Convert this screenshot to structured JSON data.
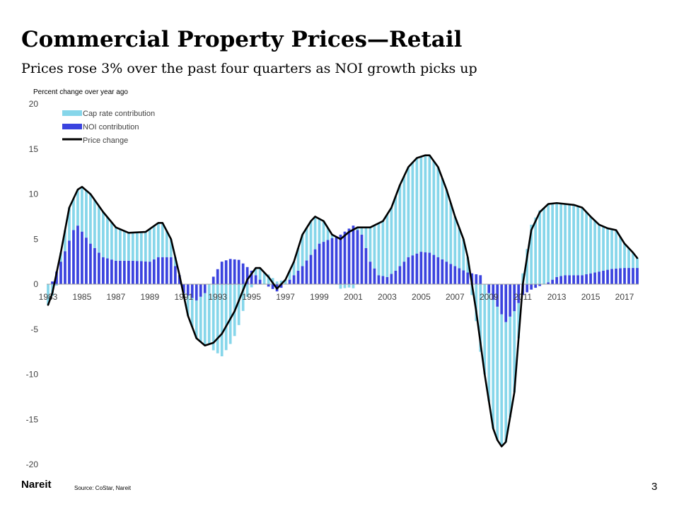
{
  "slide": {
    "title": "Commercial Property Prices—Retail",
    "subtitle": "Prices rose 3% over the past four quarters as NOI growth picks up",
    "logo": "Nareit",
    "source": "Source: CoStar, Nareit",
    "page_number": "3"
  },
  "colors": {
    "cap_rate": "#86d6ea",
    "noi": "#3a43df",
    "price": "#000000"
  },
  "chart_data": {
    "type": "bar",
    "title": "",
    "ylabel": "Percent change over year ago",
    "ylim": [
      -20,
      20
    ],
    "yticks": [
      20,
      15,
      10,
      5,
      0,
      -5,
      -10,
      -15,
      -20
    ],
    "x_range": [
      1983.0,
      2017.75
    ],
    "x_ticks": [
      "1983",
      "1985",
      "1987",
      "1989",
      "1991",
      "1993",
      "1995",
      "1997",
      "1999",
      "2001",
      "2003",
      "2005",
      "2007",
      "2009",
      "2011",
      "2013",
      "2015",
      "2017"
    ],
    "grid": false,
    "legend_position": "top-left",
    "series": [
      {
        "name": "Cap rate contribution",
        "kind": "stacked-bar"
      },
      {
        "name": "NOI contribution",
        "kind": "stacked-bar"
      },
      {
        "name": "Price change",
        "kind": "line"
      }
    ],
    "noi_keypoints": [
      [
        1983.0,
        0.0
      ],
      [
        1983.25,
        0.3
      ],
      [
        1983.75,
        2.5
      ],
      [
        1984.5,
        6.0
      ],
      [
        1984.75,
        6.5
      ],
      [
        1985.5,
        4.5
      ],
      [
        1986.25,
        3.0
      ],
      [
        1987.0,
        2.6
      ],
      [
        1988.0,
        2.6
      ],
      [
        1989.0,
        2.5
      ],
      [
        1989.5,
        3.0
      ],
      [
        1990.25,
        3.0
      ],
      [
        1990.75,
        1.0
      ],
      [
        1991.0,
        -1.0
      ],
      [
        1991.75,
        -1.8
      ],
      [
        1992.25,
        -1.0
      ],
      [
        1992.5,
        0.0
      ],
      [
        1993.25,
        2.5
      ],
      [
        1993.75,
        2.8
      ],
      [
        1994.25,
        2.7
      ],
      [
        1995.0,
        1.5
      ],
      [
        1995.75,
        0.0
      ],
      [
        1996.5,
        -0.8
      ],
      [
        1997.0,
        0.0
      ],
      [
        1997.5,
        1.0
      ],
      [
        1998.0,
        2.0
      ],
      [
        1999.0,
        4.5
      ],
      [
        2000.25,
        5.5
      ],
      [
        2001.0,
        6.5
      ],
      [
        2001.5,
        5.5
      ],
      [
        2002.0,
        2.5
      ],
      [
        2002.5,
        1.0
      ],
      [
        2003.0,
        0.8
      ],
      [
        2003.5,
        1.5
      ],
      [
        2004.25,
        3.0
      ],
      [
        2005.0,
        3.6
      ],
      [
        2005.5,
        3.5
      ],
      [
        2006.0,
        3.0
      ],
      [
        2007.0,
        2.0
      ],
      [
        2007.75,
        1.3
      ],
      [
        2008.5,
        1.0
      ],
      [
        2009.0,
        -1.0
      ],
      [
        2009.5,
        -2.5
      ],
      [
        2010.0,
        -4.2
      ],
      [
        2010.5,
        -3.0
      ],
      [
        2011.0,
        -1.2
      ],
      [
        2011.5,
        -0.6
      ],
      [
        2012.5,
        0.2
      ],
      [
        2013.0,
        0.8
      ],
      [
        2013.5,
        1.0
      ],
      [
        2014.5,
        1.0
      ],
      [
        2015.5,
        1.4
      ],
      [
        2016.25,
        1.7
      ],
      [
        2017.0,
        1.8
      ],
      [
        2017.75,
        1.8
      ]
    ],
    "price_keypoints": [
      [
        1983.0,
        -2.3
      ],
      [
        1983.25,
        -1.0
      ],
      [
        1983.75,
        3.5
      ],
      [
        1984.25,
        8.5
      ],
      [
        1984.75,
        10.5
      ],
      [
        1985.0,
        10.8
      ],
      [
        1985.5,
        10.0
      ],
      [
        1986.25,
        8.0
      ],
      [
        1987.0,
        6.3
      ],
      [
        1987.75,
        5.7
      ],
      [
        1988.75,
        5.8
      ],
      [
        1989.5,
        6.8
      ],
      [
        1989.75,
        6.8
      ],
      [
        1990.25,
        5.0
      ],
      [
        1990.75,
        1.0
      ],
      [
        1991.25,
        -3.5
      ],
      [
        1991.75,
        -6.0
      ],
      [
        1992.25,
        -6.8
      ],
      [
        1992.75,
        -6.5
      ],
      [
        1993.25,
        -5.5
      ],
      [
        1994.0,
        -3.0
      ],
      [
        1994.75,
        0.5
      ],
      [
        1995.25,
        1.8
      ],
      [
        1995.5,
        1.8
      ],
      [
        1996.0,
        0.8
      ],
      [
        1996.5,
        -0.5
      ],
      [
        1997.0,
        0.5
      ],
      [
        1997.5,
        2.5
      ],
      [
        1998.0,
        5.5
      ],
      [
        1998.5,
        7.0
      ],
      [
        1998.75,
        7.5
      ],
      [
        1999.25,
        7.0
      ],
      [
        1999.75,
        5.5
      ],
      [
        2000.25,
        5.0
      ],
      [
        2000.75,
        5.8
      ],
      [
        2001.25,
        6.3
      ],
      [
        2002.0,
        6.3
      ],
      [
        2002.75,
        7.0
      ],
      [
        2003.25,
        8.5
      ],
      [
        2003.75,
        11.0
      ],
      [
        2004.25,
        13.0
      ],
      [
        2004.75,
        14.0
      ],
      [
        2005.25,
        14.3
      ],
      [
        2005.5,
        14.3
      ],
      [
        2006.0,
        13.0
      ],
      [
        2006.5,
        10.5
      ],
      [
        2007.0,
        7.5
      ],
      [
        2007.5,
        5.0
      ],
      [
        2007.75,
        3.0
      ],
      [
        2008.25,
        -3.0
      ],
      [
        2008.75,
        -10.0
      ],
      [
        2009.25,
        -16.0
      ],
      [
        2009.5,
        -17.3
      ],
      [
        2009.75,
        -18.0
      ],
      [
        2010.0,
        -17.5
      ],
      [
        2010.5,
        -12.0
      ],
      [
        2011.0,
        0.0
      ],
      [
        2011.5,
        6.0
      ],
      [
        2012.0,
        8.0
      ],
      [
        2012.5,
        8.9
      ],
      [
        2013.0,
        9.0
      ],
      [
        2014.0,
        8.8
      ],
      [
        2014.5,
        8.5
      ],
      [
        2015.0,
        7.5
      ],
      [
        2015.5,
        6.6
      ],
      [
        2016.0,
        6.2
      ],
      [
        2016.5,
        6.0
      ],
      [
        2017.0,
        4.5
      ],
      [
        2017.5,
        3.5
      ],
      [
        2017.75,
        2.9
      ]
    ]
  }
}
